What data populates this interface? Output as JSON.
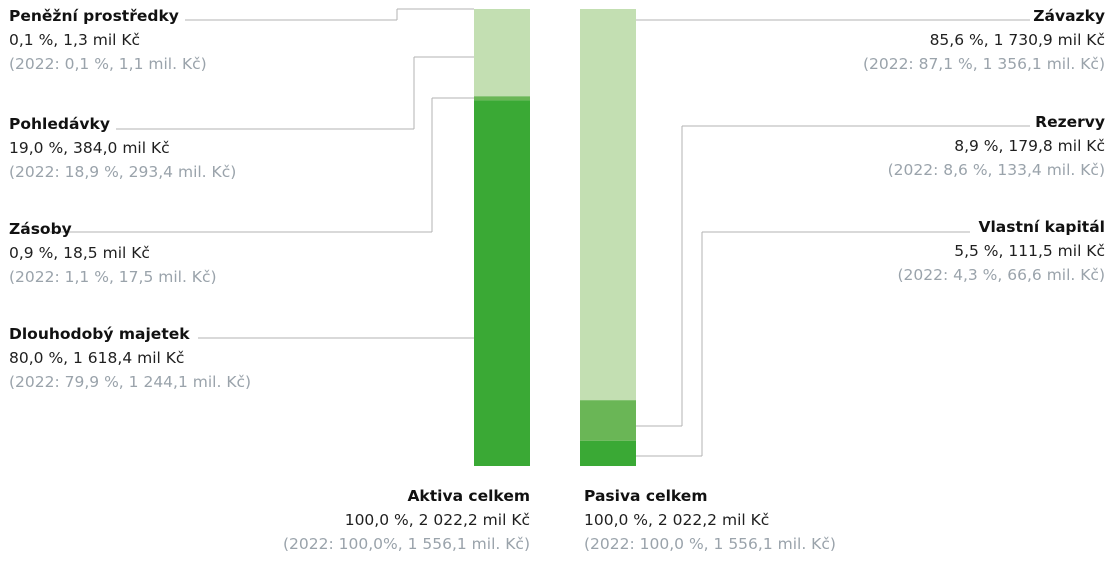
{
  "chart_data": {
    "type": "bar",
    "stacked": true,
    "unit": "%",
    "colors": {
      "cash": "#c3dfb2",
      "receivables": "#c3dfb2",
      "inventories": "#6ab656",
      "fixed_assets": "#3aa935",
      "liabilities": "#c3dfb2",
      "provisions": "#6ab656",
      "equity": "#3aa935"
    },
    "bars": [
      {
        "name": "Aktiva",
        "segments": [
          {
            "key": "cash",
            "value": 0.1
          },
          {
            "key": "receivables",
            "value": 19.0
          },
          {
            "key": "inventories",
            "value": 0.9
          },
          {
            "key": "fixed_assets",
            "value": 80.0
          }
        ]
      },
      {
        "name": "Pasiva",
        "segments": [
          {
            "key": "liabilities",
            "value": 85.6
          },
          {
            "key": "provisions",
            "value": 8.9
          },
          {
            "key": "equity",
            "value": 5.5
          }
        ]
      }
    ],
    "labels": {
      "cash": {
        "title": "Peněžní prostředky",
        "current": "0,1 %, 1,3 mil Kč",
        "previous": "(2022: 0,1 %, 1,1 mil. Kč)"
      },
      "receivables": {
        "title": "Pohledávky",
        "current": "19,0 %, 384,0 mil Kč",
        "previous": "(2022: 18,9 %, 293,4 mil. Kč)"
      },
      "inventories": {
        "title": "Zásoby",
        "current": "0,9 %, 18,5 mil Kč",
        "previous": "(2022: 1,1 %, 17,5 mil. Kč)"
      },
      "fixed_assets": {
        "title": "Dlouhodobý majetek",
        "current": "80,0 %, 1 618,4 mil Kč",
        "previous": "(2022: 79,9 %, 1 244,1 mil. Kč)"
      },
      "liabilities": {
        "title": "Závazky",
        "current": "85,6 %, 1 730,9 mil Kč",
        "previous": "(2022: 87,1 %, 1 356,1 mil. Kč)"
      },
      "provisions": {
        "title": "Rezervy",
        "current": "8,9 %, 179,8 mil Kč",
        "previous": "(2022: 8,6 %, 133,4 mil. Kč)"
      },
      "equity": {
        "title": "Vlastní kapitál",
        "current": "5,5 %, 111,5 mil Kč",
        "previous": "(2022: 4,3 %, 66,6 mil. Kč)"
      }
    },
    "totals": {
      "assets": {
        "title": "Aktiva celkem",
        "current": "100,0 %, 2 022,2 mil Kč",
        "previous": "(2022: 100,0%, 1 556,1 mil. Kč)"
      },
      "liabilities_equity": {
        "title": "Pasiva celkem",
        "current": "100,0 %, 2 022,2 mil Kč",
        "previous": "(2022: 100,0 %, 1 556,1 mil. Kč)"
      }
    }
  }
}
